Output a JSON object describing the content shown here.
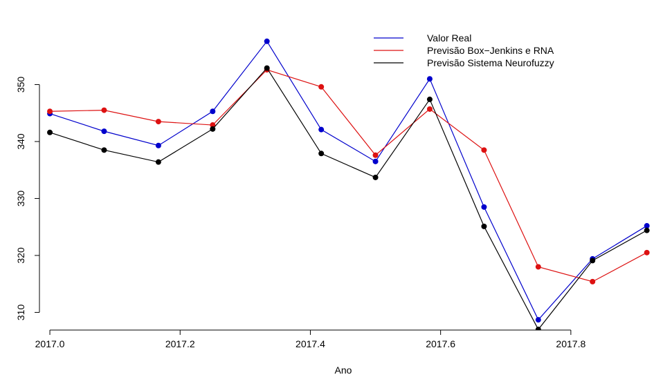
{
  "chart_data": {
    "type": "line",
    "title": "",
    "xlabel": "Ano",
    "ylabel": "",
    "xlim": [
      -0.016,
      0.933
    ],
    "ylim": [
      306.9,
      360.0
    ],
    "x_ticks": [
      0.0,
      0.2,
      0.4,
      0.6,
      0.8
    ],
    "x_tick_labels": [
      "2017.0",
      "2017.2",
      "2017.4",
      "2017.6",
      "2017.8"
    ],
    "y_ticks": [
      310,
      320,
      330,
      340,
      350
    ],
    "y_tick_labels": [
      "310",
      "320",
      "330",
      "340",
      "350"
    ],
    "x_offset_label": "2017",
    "x": [
      0.0,
      0.0833,
      0.1667,
      0.25,
      0.3333,
      0.4167,
      0.5,
      0.5833,
      0.6667,
      0.75,
      0.8333,
      0.9167
    ],
    "grid": false,
    "legend_position": "top-right",
    "series": [
      {
        "name": "Valor Real",
        "color": "#0000cc",
        "values": [
          344.9,
          341.8,
          339.3,
          345.3,
          357.6,
          342.1,
          336.5,
          351.0,
          328.5,
          308.7,
          319.4,
          325.2
        ]
      },
      {
        "name": "Previsão Box−Jenkins e RNA",
        "color": "#dd1111",
        "values": [
          345.3,
          345.5,
          343.5,
          342.9,
          352.6,
          349.6,
          337.6,
          345.7,
          338.5,
          318.0,
          315.4,
          320.5
        ]
      },
      {
        "name": "Previsão Sistema Neurofuzzy",
        "color": "#000000",
        "values": [
          341.6,
          338.5,
          336.4,
          342.2,
          352.9,
          337.9,
          333.7,
          347.4,
          325.1,
          307.0,
          319.1,
          324.4
        ]
      }
    ]
  }
}
